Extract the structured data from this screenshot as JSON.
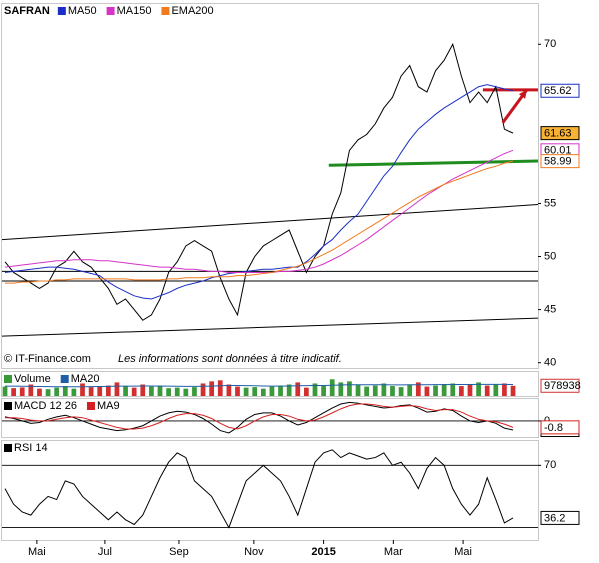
{
  "chart_data": [
    {
      "type": "line",
      "title": "SAFRAN",
      "source": "© IT-Finance.com",
      "note": "Les informations sont données à titre indicatif.",
      "xlim": [
        -0.35,
        61.9
      ],
      "ylim": [
        39.5,
        73.7
      ],
      "yticks": [
        40,
        45,
        50,
        55,
        70
      ],
      "grid": false,
      "series": [
        {
          "color": "#000000",
          "label_fill": "#f9b233",
          "values": [
            49.5,
            48.5,
            48,
            47.5,
            47,
            47.5,
            49,
            49.5,
            50.5,
            49.5,
            49,
            48,
            47,
            45.5,
            46,
            45,
            44,
            44.5,
            46,
            48.5,
            49.5,
            51,
            51.5,
            51,
            50.5,
            48,
            46,
            44.5,
            48.5,
            50,
            51,
            51.5,
            52,
            52.5,
            50.5,
            48.5,
            50,
            51,
            54,
            56,
            60,
            61,
            61.5,
            62.5,
            64,
            65,
            67,
            68,
            66,
            65.5,
            67.5,
            68.5,
            70,
            67,
            64.5,
            65.5,
            64.5,
            66,
            62,
            61.63
          ]
        },
        {
          "name": "MA50",
          "color": "#1a2fc8",
          "values": [
            48.5,
            48.6,
            48.7,
            48.8,
            48.9,
            49,
            49,
            48.9,
            48.8,
            48.6,
            48.4,
            48.2,
            47.6,
            47.1,
            46.7,
            46.3,
            46.1,
            46,
            46.3,
            46.6,
            47,
            47.3,
            47.5,
            47.7,
            48,
            48.2,
            48.4,
            48.5,
            48.6,
            48.7,
            48.8,
            48.8,
            48.9,
            49,
            49,
            49.5,
            50.2,
            51,
            51.6,
            52.5,
            53.3,
            54,
            55.2,
            56.4,
            57.6,
            58.5,
            59.8,
            61,
            62,
            62.7,
            63.4,
            64,
            64.5,
            65,
            65.5,
            66,
            66.2,
            66,
            65.8,
            65.62
          ]
        },
        {
          "name": "MA150",
          "color": "#d633c9",
          "values": [
            49,
            49.1,
            49.2,
            49.3,
            49.4,
            49.5,
            49.6,
            49.6,
            49.7,
            49.7,
            49.7,
            49.6,
            49.6,
            49.5,
            49.4,
            49.3,
            49.2,
            49.1,
            49,
            49,
            48.9,
            48.8,
            48.8,
            48.7,
            48.6,
            48.6,
            48.5,
            48.5,
            48.5,
            48.5,
            48.5,
            48.5,
            48.6,
            48.6,
            48.7,
            48.8,
            49,
            49.3,
            49.7,
            50.1,
            50.6,
            51.1,
            51.6,
            52.2,
            52.8,
            53.4,
            54,
            54.6,
            55.2,
            55.8,
            56.3,
            56.8,
            57.3,
            57.7,
            58.1,
            58.5,
            58.9,
            59.3,
            59.7,
            60.01
          ]
        },
        {
          "name": "EMA200",
          "color": "#f07b1e",
          "values": [
            47.5,
            47.5,
            47.6,
            47.6,
            47.7,
            47.7,
            47.8,
            47.8,
            47.9,
            47.9,
            47.9,
            47.9,
            47.9,
            47.9,
            47.9,
            47.8,
            47.8,
            47.8,
            47.8,
            47.9,
            47.9,
            48,
            48,
            48,
            48.1,
            48.1,
            48.1,
            48.2,
            48.2,
            48.3,
            48.4,
            48.5,
            48.7,
            48.9,
            49.1,
            49.4,
            49.8,
            50.2,
            50.6,
            51.1,
            51.6,
            52.1,
            52.6,
            53.1,
            53.6,
            54.1,
            54.6,
            55.1,
            55.6,
            56,
            56.4,
            56.8,
            57.1,
            57.4,
            57.7,
            58,
            58.3,
            58.5,
            58.8,
            58.99
          ]
        }
      ],
      "lines": [
        {
          "color": "#000000",
          "width": 1,
          "points": [
            [
              -0.35,
              51.6
            ],
            [
              61.9,
              54.9
            ]
          ]
        },
        {
          "color": "#000000",
          "width": 1,
          "points": [
            [
              -0.35,
              42.5
            ],
            [
              61.9,
              44.2
            ]
          ]
        },
        {
          "color": "#000000",
          "width": 1,
          "points": [
            [
              -0.35,
              48.6
            ],
            [
              61.9,
              48.6
            ]
          ]
        },
        {
          "color": "#000000",
          "width": 1,
          "points": [
            [
              -0.35,
              47.7
            ],
            [
              61.9,
              47.7
            ]
          ]
        },
        {
          "color": "#1e8c1e",
          "width": 3,
          "points": [
            [
              37.6,
              58.6
            ],
            [
              61.9,
              59.0
            ]
          ]
        },
        {
          "color": "#c8141e",
          "width": 3,
          "points": [
            [
              55.5,
              65.7
            ],
            [
              61.9,
              65.7
            ]
          ]
        }
      ],
      "arrows": [
        {
          "color": "#c8141e",
          "width": 3,
          "points": [
            [
              57.8,
              62.6
            ],
            [
              60.6,
              65.7
            ]
          ]
        }
      ]
    },
    {
      "type": "bar",
      "xlim": [
        -0.35,
        61.9
      ],
      "ylim": [
        0,
        2200000
      ],
      "down_color": "#d23030",
      "series": [
        {
          "name": "Volume",
          "color": "#3a9a3a",
          "values": [
            900000,
            750000,
            820000,
            1100000,
            700000,
            650000,
            800000,
            950000,
            700000,
            1200000,
            850000,
            900000,
            1000000,
            1300000,
            950000,
            800000,
            1100000,
            900000,
            1000000,
            750000,
            800000,
            700000,
            850000,
            1200000,
            1400000,
            1500000,
            1100000,
            900000,
            800000,
            850000,
            700000,
            900000,
            1000000,
            1100000,
            1300000,
            800000,
            1200000,
            1000000,
            1600000,
            1300000,
            1400000,
            1100000,
            900000,
            1000000,
            1200000,
            950000,
            850000,
            1100000,
            1300000,
            900000,
            1000000,
            1150000,
            1200000,
            950000,
            1100000,
            1300000,
            1000000,
            1100000,
            1200000,
            978938
          ]
        },
        {
          "name": "MA20",
          "type": "line",
          "color": "#1f5fa8",
          "values": [
            950000,
            940000,
            930000,
            920000,
            910000,
            900000,
            890000,
            880000,
            880000,
            890000,
            900000,
            910000,
            920000,
            940000,
            950000,
            950000,
            960000,
            960000,
            950000,
            940000,
            930000,
            920000,
            920000,
            930000,
            950000,
            980000,
            1000000,
            1000000,
            990000,
            980000,
            960000,
            950000,
            950000,
            960000,
            980000,
            990000,
            1000000,
            1010000,
            1030000,
            1050000,
            1070000,
            1080000,
            1080000,
            1070000,
            1070000,
            1060000,
            1060000,
            1070000,
            1080000,
            1080000,
            1090000,
            1090000,
            1100000,
            1100000,
            1100000,
            1110000,
            1110000,
            1110000,
            1110000,
            1100000
          ]
        }
      ]
    },
    {
      "type": "line",
      "xlim": [
        -0.35,
        61.9
      ],
      "ylim": [
        -2,
        2.6
      ],
      "yticks": [
        0
      ],
      "grid": true,
      "series": [
        {
          "name": "MACD 12 26",
          "color": "#000000",
          "values": [
            0.5,
            0.3,
            0,
            -0.3,
            -0.2,
            0.2,
            0.5,
            0.7,
            0.4,
            0,
            -0.4,
            -0.8,
            -1,
            -1.2,
            -1.1,
            -0.9,
            -0.6,
            0,
            0.6,
            1,
            1.2,
            1.1,
            0.8,
            0.3,
            -0.4,
            -1.2,
            -1.5,
            -0.8,
            0.2,
            0.8,
            1,
            1,
            0.6,
            0,
            -0.5,
            -0.2,
            0.4,
            1,
            1.6,
            2.1,
            2.3,
            2.2,
            2,
            1.8,
            1.6,
            1.7,
            1.9,
            2,
            1.6,
            1.1,
            1.2,
            1.5,
            1.3,
            0.6,
            0,
            -0.2,
            0,
            -0.3,
            -0.9,
            -1.13
          ]
        },
        {
          "name": "MA9",
          "color": "#d42020",
          "values": [
            0.4,
            0.4,
            0.3,
            0.1,
            0,
            0,
            0.2,
            0.4,
            0.5,
            0.4,
            0.1,
            -0.2,
            -0.5,
            -0.8,
            -1,
            -1,
            -0.9,
            -0.6,
            -0.2,
            0.3,
            0.7,
            0.9,
            0.9,
            0.7,
            0.3,
            -0.3,
            -0.8,
            -1,
            -0.6,
            0,
            0.5,
            0.8,
            0.8,
            0.6,
            0.2,
            0,
            0.1,
            0.5,
            1,
            1.5,
            1.9,
            2.1,
            2.1,
            2,
            1.8,
            1.7,
            1.8,
            1.9,
            1.8,
            1.5,
            1.3,
            1.4,
            1.4,
            1.1,
            0.6,
            0.2,
            0,
            -0.1,
            -0.4,
            -0.8
          ]
        }
      ]
    },
    {
      "type": "line",
      "xlim": [
        -0.35,
        61.9
      ],
      "ylim": [
        22,
        85
      ],
      "yticks": [
        70
      ],
      "levels": [
        30
      ],
      "grid": true,
      "xticks": [
        {
          "value": 3.7,
          "label": "Mai"
        },
        {
          "value": 11.6,
          "label": "Jul"
        },
        {
          "value": 20.2,
          "label": "Sep"
        },
        {
          "value": 28.9,
          "label": "Nov"
        },
        {
          "value": 37,
          "label": "2015",
          "bold": true
        },
        {
          "value": 45.1,
          "label": "Mar"
        },
        {
          "value": 53.2,
          "label": "Mai"
        }
      ],
      "series": [
        {
          "name": "RSI 14",
          "color": "#000000",
          "values": [
            55,
            45,
            40,
            38,
            45,
            50,
            48,
            60,
            58,
            50,
            45,
            40,
            35,
            40,
            35,
            32,
            38,
            50,
            62,
            72,
            78,
            75,
            60,
            55,
            50,
            40,
            30,
            45,
            60,
            65,
            70,
            65,
            60,
            50,
            38,
            55,
            72,
            78,
            80,
            75,
            78,
            76,
            74,
            75,
            78,
            70,
            72,
            65,
            55,
            68,
            75,
            70,
            55,
            45,
            38,
            45,
            62,
            48,
            33,
            36.2
          ]
        }
      ]
    }
  ]
}
